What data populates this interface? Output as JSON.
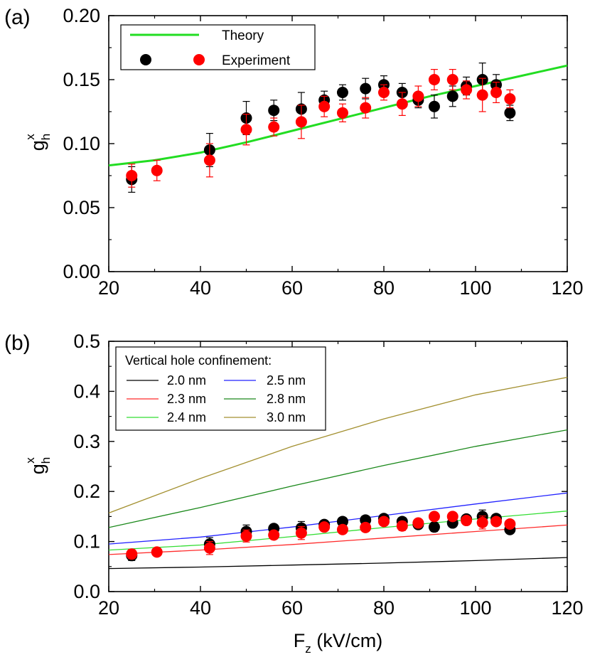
{
  "chart_data": [
    {
      "panel_label": "(a)",
      "type": "scatter",
      "xlim": [
        20,
        120
      ],
      "ylim": [
        0.0,
        0.2
      ],
      "x_ticks": [
        "20",
        "40",
        "60",
        "80",
        "100",
        "120"
      ],
      "y_ticks": [
        "0.00",
        "0.05",
        "0.10",
        "0.15",
        "0.20"
      ],
      "ylabel": {
        "base": "g",
        "sub": "h",
        "sup": "x"
      },
      "xlabel": "",
      "legend": {
        "placement": "top-left",
        "entries": [
          "Theory",
          "Experiment"
        ]
      },
      "theory": {
        "name": "Theory",
        "color": "#22dd22",
        "x": [
          20,
          30,
          40,
          50,
          60,
          70,
          80,
          90,
          100,
          110,
          120
        ],
        "y": [
          0.083,
          0.087,
          0.093,
          0.101,
          0.11,
          0.119,
          0.128,
          0.137,
          0.145,
          0.153,
          0.161
        ]
      },
      "experiment": [
        {
          "name": "Experiment (black)",
          "color": "#000000",
          "x": [
            25,
            42,
            50,
            56,
            62,
            67,
            71,
            76,
            80,
            84,
            87.5,
            91,
            95,
            98,
            101.5,
            104.5,
            107.5
          ],
          "y": [
            0.072,
            0.095,
            0.12,
            0.126,
            0.127,
            0.134,
            0.14,
            0.143,
            0.146,
            0.14,
            0.134,
            0.129,
            0.137,
            0.145,
            0.15,
            0.146,
            0.124
          ],
          "err": [
            0.01,
            0.013,
            0.013,
            0.008,
            0.013,
            0.007,
            0.006,
            0.008,
            0.007,
            0.007,
            0.006,
            0.009,
            0.008,
            0.007,
            0.013,
            0.008,
            0.006
          ]
        },
        {
          "name": "Experiment (red)",
          "color": "#ff0000",
          "x": [
            25,
            30.5,
            42,
            50,
            56,
            62,
            67,
            71,
            76,
            80,
            84,
            87.5,
            91,
            95,
            98,
            101.5,
            104.5,
            107.5
          ],
          "y": [
            0.075,
            0.079,
            0.087,
            0.111,
            0.113,
            0.117,
            0.129,
            0.124,
            0.128,
            0.14,
            0.131,
            0.137,
            0.15,
            0.15,
            0.142,
            0.138,
            0.14,
            0.135
          ],
          "err": [
            0.009,
            0.008,
            0.013,
            0.012,
            0.007,
            0.013,
            0.008,
            0.007,
            0.008,
            0.006,
            0.009,
            0.008,
            0.008,
            0.008,
            0.007,
            0.013,
            0.008,
            0.007
          ]
        }
      ]
    },
    {
      "panel_label": "(b)",
      "type": "scatter",
      "xlim": [
        20,
        120
      ],
      "ylim": [
        0.0,
        0.5
      ],
      "x_ticks": [
        "20",
        "40",
        "60",
        "80",
        "100",
        "120"
      ],
      "y_ticks": [
        "0.0",
        "0.1",
        "0.2",
        "0.3",
        "0.4",
        "0.5"
      ],
      "ylabel": {
        "base": "g",
        "sub": "h",
        "sup": "x"
      },
      "xlabel": {
        "base": "F",
        "sub": "z",
        "rest": " (kV/cm)"
      },
      "legend": {
        "placement": "top-left",
        "title": "Vertical hole confinement:"
      },
      "series": [
        {
          "name": "2.0 nm",
          "color": "#000000",
          "x": [
            20,
            40,
            60,
            80,
            100,
            120
          ],
          "y": [
            0.046,
            0.049,
            0.053,
            0.057,
            0.062,
            0.068
          ]
        },
        {
          "name": "2.3 nm",
          "color": "#ff2a2a",
          "x": [
            20,
            40,
            60,
            80,
            100,
            120
          ],
          "y": [
            0.074,
            0.083,
            0.094,
            0.107,
            0.12,
            0.133
          ]
        },
        {
          "name": "2.4 nm",
          "color": "#33dd33",
          "x": [
            20,
            40,
            60,
            80,
            100,
            120
          ],
          "y": [
            0.083,
            0.093,
            0.11,
            0.128,
            0.145,
            0.161
          ]
        },
        {
          "name": "2.5 nm",
          "color": "#2222ff",
          "x": [
            20,
            40,
            60,
            80,
            100,
            120
          ],
          "y": [
            0.095,
            0.109,
            0.129,
            0.152,
            0.175,
            0.197
          ]
        },
        {
          "name": "2.8 nm",
          "color": "#1a881a",
          "x": [
            20,
            40,
            60,
            80,
            100,
            120
          ],
          "y": [
            0.128,
            0.168,
            0.211,
            0.252,
            0.29,
            0.323
          ]
        },
        {
          "name": "3.0 nm",
          "color": "#a39030",
          "x": [
            20,
            40,
            60,
            80,
            100,
            120
          ],
          "y": [
            0.157,
            0.226,
            0.29,
            0.345,
            0.393,
            0.428
          ]
        }
      ],
      "experiment": [
        {
          "name": "Experiment (black)",
          "color": "#000000",
          "x": [
            25,
            42,
            50,
            56,
            62,
            67,
            71,
            76,
            80,
            84,
            87.5,
            91,
            95,
            98,
            101.5,
            104.5,
            107.5
          ],
          "y": [
            0.072,
            0.095,
            0.12,
            0.126,
            0.127,
            0.134,
            0.14,
            0.143,
            0.146,
            0.14,
            0.134,
            0.129,
            0.137,
            0.145,
            0.15,
            0.146,
            0.124
          ],
          "err": [
            0.01,
            0.013,
            0.013,
            0.008,
            0.013,
            0.007,
            0.006,
            0.008,
            0.007,
            0.007,
            0.006,
            0.009,
            0.008,
            0.007,
            0.013,
            0.008,
            0.006
          ]
        },
        {
          "name": "Experiment (red)",
          "color": "#ff0000",
          "x": [
            25,
            30.5,
            42,
            50,
            56,
            62,
            67,
            71,
            76,
            80,
            84,
            87.5,
            91,
            95,
            98,
            101.5,
            104.5,
            107.5
          ],
          "y": [
            0.075,
            0.079,
            0.087,
            0.111,
            0.113,
            0.117,
            0.129,
            0.124,
            0.128,
            0.14,
            0.131,
            0.137,
            0.15,
            0.15,
            0.142,
            0.138,
            0.14,
            0.135
          ],
          "err": [
            0.009,
            0.008,
            0.013,
            0.012,
            0.007,
            0.013,
            0.008,
            0.007,
            0.008,
            0.006,
            0.009,
            0.008,
            0.008,
            0.008,
            0.007,
            0.013,
            0.008,
            0.007
          ]
        }
      ]
    }
  ]
}
